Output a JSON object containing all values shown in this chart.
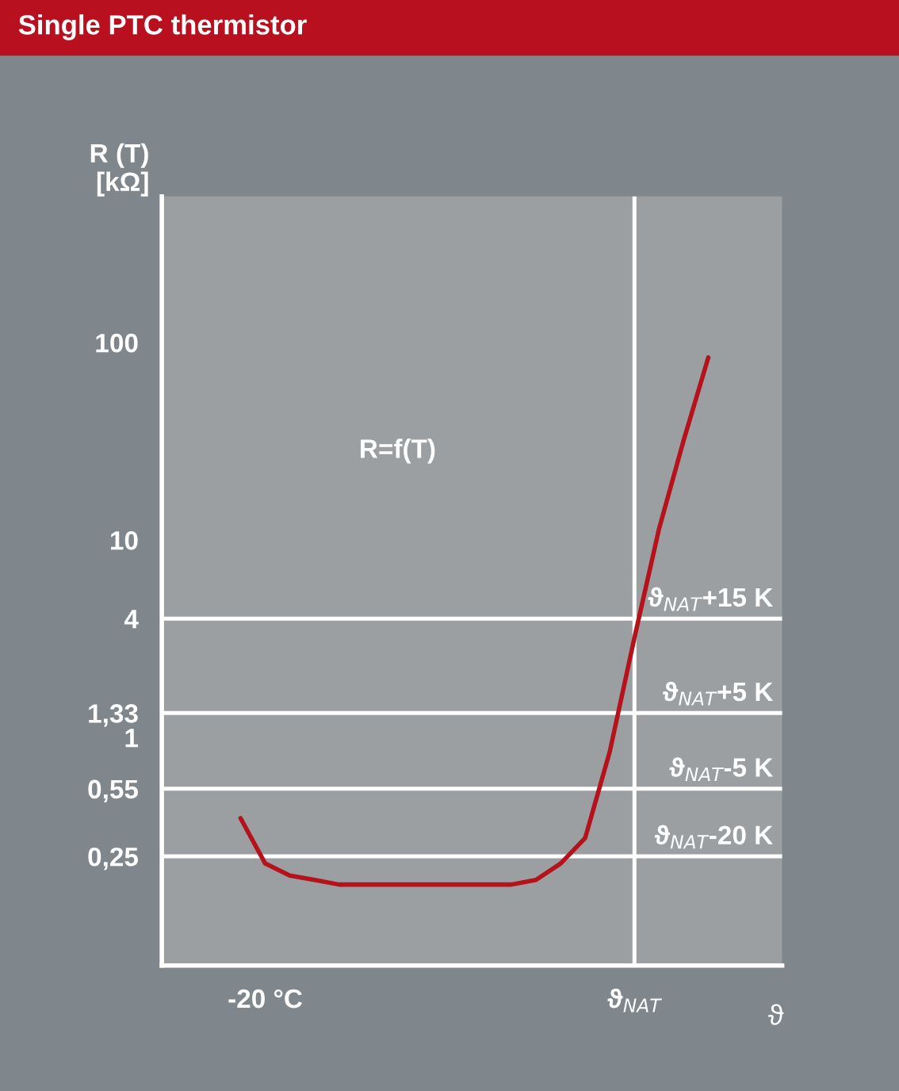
{
  "chart_data": {
    "type": "line",
    "title": "Single PTC thermistor",
    "ylabel": "R (T)\n[kΩ]",
    "xlabel": "ϑ",
    "categories": [
      null,
      "-20 °C",
      null,
      null,
      null,
      null,
      null,
      null,
      null,
      null,
      null,
      null,
      null,
      null,
      null,
      null,
      "ϑ$_{NAT}$",
      null,
      null,
      null
    ],
    "series": [
      {
        "color": "#b5121b",
        "values": [
          0.39,
          0.23,
          0.2,
          0.19,
          0.18,
          0.18,
          0.18,
          0.18,
          0.18,
          0.18,
          0.18,
          0.18,
          0.19,
          0.23,
          0.31,
          0.85,
          3.2,
          11.4,
          32,
          84
        ]
      }
    ],
    "log": "y",
    "ylim": [
      0.07,
      550
    ],
    "yticks": [
      {
        "value": 0.25,
        "label": "0,25"
      },
      {
        "value": 0.55,
        "label": "0,55"
      },
      1,
      {
        "value": 1.33,
        "label": "1,33"
      },
      4,
      10,
      100
    ],
    "ref_lines": [
      {
        "axis": "y",
        "value": 4,
        "label": "ϑ$_{NAT}$+15 K"
      },
      {
        "axis": "y",
        "value": 1.33,
        "label": "ϑ$_{NAT}$+5 K"
      },
      {
        "axis": "y",
        "value": 0.55,
        "label": "ϑ$_{NAT}$-5 K"
      },
      {
        "axis": "y",
        "value": 0.25,
        "label": "ϑ$_{NAT}$-20 K"
      },
      {
        "axis": "x",
        "value": "ϑ$_{NAT}$"
      }
    ],
    "annotations": [
      "R=f(T)"
    ],
    "grid": false,
    "legend": false,
    "line_style": "solid",
    "marker": "none"
  }
}
